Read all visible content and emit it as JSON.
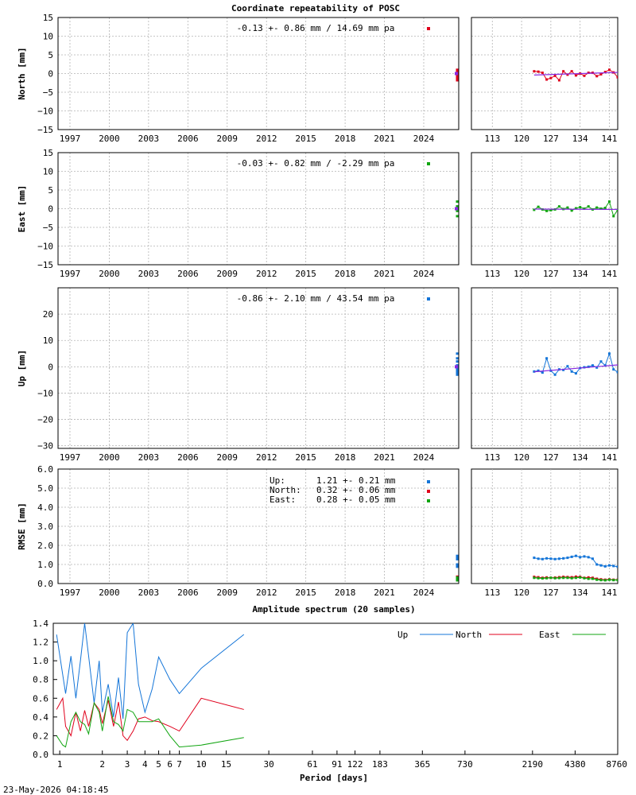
{
  "header": {
    "title": "Coordinate repeatability of POSC"
  },
  "footer": {
    "timestamp": "23-May-2026 04:18:45"
  },
  "colors": {
    "north": "#e0001c",
    "east": "#11a511",
    "up": "#1475d8",
    "trend": "#8a2be2"
  },
  "chart_data": [
    {
      "type": "scatter",
      "panel": "north",
      "ylabel": "North [mm]",
      "annotation": "-0.13 +- 0.86 mm / 14.69 mm pa",
      "ylim": [
        -15,
        15
      ],
      "yticks": [
        -15,
        -10,
        -5,
        0,
        5,
        10,
        15
      ],
      "xticks": [
        "1997",
        "2000",
        "2003",
        "2006",
        "2009",
        "2012",
        "2015",
        "2018",
        "2021",
        "2024"
      ],
      "zoom_xlim": [
        108,
        143
      ],
      "zoom_xticks": [
        "113",
        "120",
        "127",
        "134",
        "141"
      ],
      "series": [
        {
          "color": "north",
          "x": [
            123,
            124,
            125,
            126,
            127,
            128,
            129,
            130,
            131,
            132,
            133,
            134,
            135,
            136,
            137,
            138,
            139,
            140,
            141,
            142,
            143
          ],
          "y": [
            0.6,
            0.5,
            0.2,
            -1.6,
            -1.2,
            -0.6,
            -1.8,
            0.6,
            -0.3,
            0.6,
            -0.5,
            0.0,
            -0.6,
            0.2,
            0.2,
            -0.7,
            -0.2,
            0.4,
            1.0,
            0.3,
            -1.0
          ]
        }
      ],
      "trend": {
        "x": [
          123,
          143
        ],
        "y": [
          -0.4,
          0.3
        ]
      }
    },
    {
      "type": "scatter",
      "panel": "east",
      "ylabel": "East [mm]",
      "annotation": "-0.03 +- 0.82 mm / -2.29 mm pa",
      "ylim": [
        -15,
        15
      ],
      "yticks": [
        -15,
        -10,
        -5,
        0,
        5,
        10,
        15
      ],
      "xticks": [
        "1997",
        "2000",
        "2003",
        "2006",
        "2009",
        "2012",
        "2015",
        "2018",
        "2021",
        "2024"
      ],
      "zoom_xlim": [
        108,
        143
      ],
      "zoom_xticks": [
        "113",
        "120",
        "127",
        "134",
        "141"
      ],
      "series": [
        {
          "color": "east",
          "x": [
            123,
            124,
            125,
            126,
            127,
            128,
            129,
            130,
            131,
            132,
            133,
            134,
            135,
            136,
            137,
            138,
            139,
            140,
            141,
            142,
            143
          ],
          "y": [
            -0.3,
            0.5,
            -0.2,
            -0.6,
            -0.4,
            -0.2,
            0.6,
            -0.1,
            0.3,
            -0.5,
            0.1,
            0.4,
            0.0,
            0.6,
            -0.2,
            0.3,
            0.0,
            0.2,
            1.9,
            -2.0,
            -0.3
          ]
        }
      ],
      "trend": {
        "x": [
          123,
          143
        ],
        "y": [
          -0.1,
          -0.2
        ]
      }
    },
    {
      "type": "scatter",
      "panel": "up",
      "ylabel": "Up [mm]",
      "annotation": "-0.86 +- 2.10 mm / 43.54 mm pa",
      "ylim": [
        -31,
        30
      ],
      "yticks": [
        -30,
        -20,
        -10,
        0,
        10,
        20
      ],
      "xticks": [
        "1997",
        "2000",
        "2003",
        "2006",
        "2009",
        "2012",
        "2015",
        "2018",
        "2021",
        "2024"
      ],
      "zoom_xlim": [
        108,
        143
      ],
      "zoom_xticks": [
        "113",
        "120",
        "127",
        "134",
        "141"
      ],
      "series": [
        {
          "color": "up",
          "x": [
            123,
            124,
            125,
            126,
            127,
            128,
            129,
            130,
            131,
            132,
            133,
            134,
            135,
            136,
            137,
            138,
            139,
            140,
            141,
            142,
            143
          ],
          "y": [
            -1.8,
            -1.5,
            -2.2,
            3.2,
            -1.5,
            -3.0,
            -1.0,
            -1.2,
            0.2,
            -1.8,
            -2.5,
            -0.5,
            -0.2,
            0.0,
            0.5,
            -0.3,
            2.0,
            0.5,
            5.0,
            -1.0,
            -2.0
          ]
        }
      ],
      "trend": {
        "x": [
          123,
          143
        ],
        "y": [
          -1.9,
          0.7
        ]
      }
    },
    {
      "type": "scatter",
      "panel": "rmse",
      "ylabel": "RMSE [mm]",
      "ylim": [
        0,
        6
      ],
      "yticks": [
        "0.0",
        "1.0",
        "2.0",
        "3.0",
        "4.0",
        "5.0",
        "6.0"
      ],
      "xticks": [
        "1997",
        "2000",
        "2003",
        "2006",
        "2009",
        "2012",
        "2015",
        "2018",
        "2021",
        "2024"
      ],
      "zoom_xlim": [
        108,
        143
      ],
      "zoom_xticks": [
        "113",
        "120",
        "127",
        "134",
        "141"
      ],
      "legend": [
        {
          "label": "Up:",
          "value": "1.21 +- 0.21 mm",
          "color": "up"
        },
        {
          "label": "North:",
          "value": "0.32 +- 0.06 mm",
          "color": "north"
        },
        {
          "label": "East:",
          "value": "0.28 +- 0.05 mm",
          "color": "east"
        }
      ],
      "series": [
        {
          "name": "Up",
          "color": "up",
          "x": [
            123,
            124,
            125,
            126,
            127,
            128,
            129,
            130,
            131,
            132,
            133,
            134,
            135,
            136,
            137,
            138,
            139,
            140,
            141,
            142,
            143
          ],
          "y": [
            1.35,
            1.3,
            1.28,
            1.32,
            1.3,
            1.28,
            1.3,
            1.32,
            1.35,
            1.4,
            1.45,
            1.38,
            1.42,
            1.38,
            1.3,
            1.0,
            0.95,
            0.9,
            0.95,
            0.92,
            0.88
          ]
        },
        {
          "name": "North",
          "color": "north",
          "x": [
            123,
            124,
            125,
            126,
            127,
            128,
            129,
            130,
            131,
            132,
            133,
            134,
            135,
            136,
            137,
            138,
            139,
            140,
            141,
            142,
            143
          ],
          "y": [
            0.35,
            0.33,
            0.3,
            0.32,
            0.3,
            0.31,
            0.33,
            0.35,
            0.34,
            0.33,
            0.36,
            0.35,
            0.3,
            0.32,
            0.3,
            0.25,
            0.22,
            0.2,
            0.22,
            0.2,
            0.2
          ]
        },
        {
          "name": "East",
          "color": "east",
          "x": [
            123,
            124,
            125,
            126,
            127,
            128,
            129,
            130,
            131,
            132,
            133,
            134,
            135,
            136,
            137,
            138,
            139,
            140,
            141,
            142,
            143
          ],
          "y": [
            0.3,
            0.28,
            0.27,
            0.28,
            0.3,
            0.28,
            0.29,
            0.3,
            0.3,
            0.28,
            0.3,
            0.32,
            0.28,
            0.25,
            0.25,
            0.2,
            0.18,
            0.17,
            0.2,
            0.18,
            0.18
          ]
        }
      ]
    },
    {
      "type": "line",
      "panel": "spectrum",
      "title": "Amplitude spectrum (20 samples)",
      "xlabel": "Period [days]",
      "ylim": [
        0,
        1.4
      ],
      "yticks": [
        "0.0",
        "0.2",
        "0.4",
        "0.6",
        "0.8",
        "1.0",
        "1.2",
        "1.4"
      ],
      "xlim": [
        0.9,
        8760
      ],
      "xscale": "log",
      "xticks": [
        {
          "v": 1,
          "label": "1"
        },
        {
          "v": 2,
          "label": "2"
        },
        {
          "v": 3,
          "label": "3"
        },
        {
          "v": 4,
          "label": "4"
        },
        {
          "v": 5,
          "label": "5"
        },
        {
          "v": 6,
          "label": "6"
        },
        {
          "v": 7,
          "label": "7"
        },
        {
          "v": 10,
          "label": "10"
        },
        {
          "v": 15,
          "label": "15"
        },
        {
          "v": 30,
          "label": "30"
        },
        {
          "v": 61,
          "label": "61"
        },
        {
          "v": 91,
          "label": "91"
        },
        {
          "v": 122,
          "label": "122"
        },
        {
          "v": 183,
          "label": "183"
        },
        {
          "v": 365,
          "label": "365"
        },
        {
          "v": 730,
          "label": "730"
        },
        {
          "v": 2190,
          "label": "2190"
        },
        {
          "v": 4380,
          "label": "4380"
        },
        {
          "v": 8760,
          "label": "8760"
        }
      ],
      "x": [
        0.95,
        1.05,
        1.1,
        1.2,
        1.3,
        1.4,
        1.5,
        1.6,
        1.75,
        1.9,
        2.0,
        2.2,
        2.4,
        2.6,
        2.8,
        3.0,
        3.3,
        3.6,
        4.0,
        4.5,
        5.0,
        6.0,
        7.0,
        10.0,
        20.0
      ],
      "series": [
        {
          "name": "Up",
          "color": "up",
          "y": [
            1.28,
            0.85,
            0.65,
            1.05,
            0.6,
            1.0,
            1.4,
            1.05,
            0.55,
            1.0,
            0.45,
            0.75,
            0.4,
            0.82,
            0.38,
            1.3,
            1.4,
            0.75,
            0.45,
            0.7,
            1.04,
            0.8,
            0.65,
            0.92,
            1.28
          ]
        },
        {
          "name": "North",
          "color": "north",
          "y": [
            0.48,
            0.6,
            0.3,
            0.2,
            0.45,
            0.25,
            0.47,
            0.3,
            0.55,
            0.48,
            0.33,
            0.58,
            0.3,
            0.56,
            0.2,
            0.15,
            0.25,
            0.38,
            0.4,
            0.36,
            0.35,
            0.3,
            0.25,
            0.6,
            0.48
          ]
        },
        {
          "name": "East",
          "color": "east",
          "y": [
            0.2,
            0.1,
            0.08,
            0.35,
            0.45,
            0.35,
            0.32,
            0.22,
            0.55,
            0.45,
            0.25,
            0.62,
            0.35,
            0.32,
            0.25,
            0.48,
            0.45,
            0.35,
            0.35,
            0.35,
            0.38,
            0.2,
            0.08,
            0.1,
            0.18
          ]
        }
      ]
    }
  ]
}
